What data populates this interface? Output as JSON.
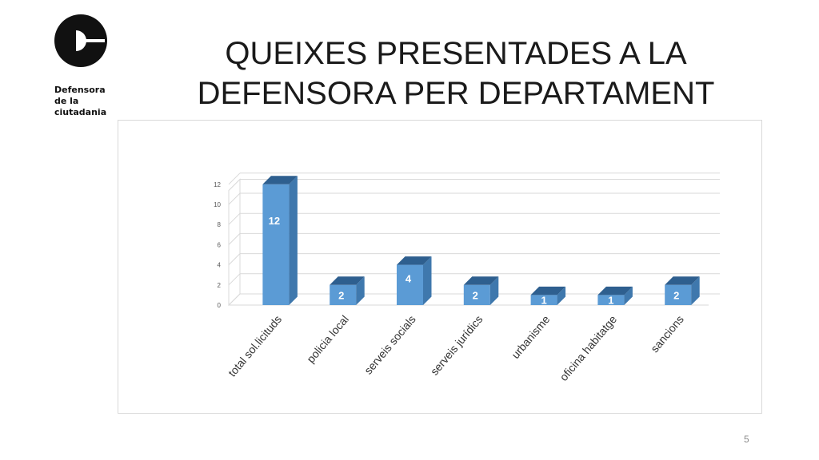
{
  "logo": {
    "lines": [
      "Defensora",
      "de la",
      "ciutadania"
    ]
  },
  "title": {
    "line1": "QUEIXES PRESENTADES A LA",
    "line2": "DEFENSORA PER DEPARTAMENT"
  },
  "page_number": "5",
  "colors": {
    "bar_front": "#5b9bd5",
    "bar_side": "#3f78ad",
    "bar_top": "#2e5f8f",
    "gridline": "#d9d9d9",
    "label_text": "#ffffff",
    "axis_text": "#595959"
  },
  "chart_data": {
    "type": "bar",
    "categories": [
      "total sol.licituds",
      "policia local",
      "serveis socials",
      "serveis jurídics",
      "urbanisme",
      "oficina habitatge",
      "sancions"
    ],
    "values": [
      12,
      2,
      4,
      2,
      1,
      1,
      2
    ],
    "data_labels": [
      "12",
      "2",
      "4",
      "2",
      "1",
      "1",
      "2"
    ],
    "yticks": [
      "0",
      "2",
      "4",
      "6",
      "8",
      "10",
      "12"
    ],
    "ylim": [
      0,
      13
    ],
    "grid": true,
    "style": "3d-column"
  }
}
